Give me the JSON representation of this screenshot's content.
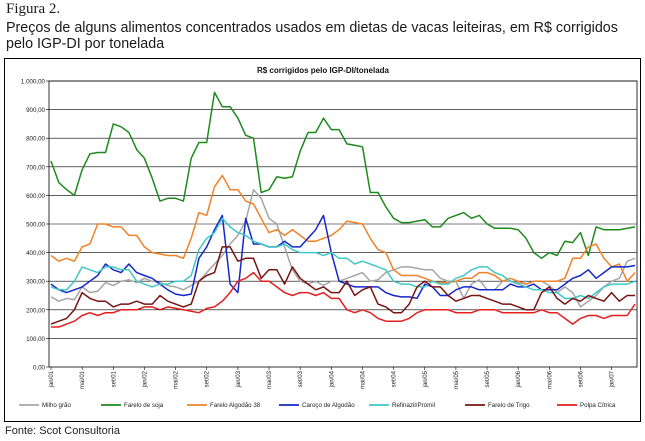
{
  "figure": {
    "label": "Figura 2.",
    "caption": "Preços de alguns alimentos concentrados usados em dietas de vacas leiteiras, em R$ corrigidos pelo IGP-DI por tonelada",
    "source": "Fonte: Scot Consultoria"
  },
  "chart_data": {
    "type": "line",
    "title": "R$ corrigidos pelo IGP-DI/tonelada",
    "xlabel": "",
    "ylabel": "",
    "ylim": [
      0,
      1000
    ],
    "yticks": [
      "0,00",
      "100,00",
      "200,00",
      "300,00",
      "400,00",
      "500,00",
      "600,00",
      "700,00",
      "800,00",
      "900,00",
      "1.000,00"
    ],
    "x_tick_labels": [
      "jan/01",
      "mai/01",
      "set/01",
      "jan/02",
      "mai/02",
      "set/02",
      "jan/03",
      "mai/03",
      "set/03",
      "jan/04",
      "mai/04",
      "set/04",
      "jan/05",
      "mai/05",
      "set/05",
      "jan/06",
      "mai/06",
      "set/06",
      "jan/07"
    ],
    "x_start": "jan/01",
    "n_months": 76,
    "grid": "horizontal",
    "legend_position": "bottom",
    "series": [
      {
        "name": "Milho grão",
        "color": "#a6a6a6",
        "values": [
          245,
          230,
          240,
          235,
          280,
          260,
          265,
          295,
          285,
          300,
          305,
          295,
          310,
          300,
          295,
          285,
          280,
          270,
          285,
          300,
          330,
          360,
          390,
          430,
          460,
          510,
          620,
          590,
          520,
          500,
          420,
          340,
          300,
          290,
          300,
          285,
          300,
          300,
          310,
          320,
          330,
          300,
          305,
          330,
          340,
          350,
          350,
          345,
          340,
          340,
          310,
          300,
          300,
          240,
          290,
          305,
          270,
          270,
          300,
          300,
          295,
          290,
          300,
          300,
          285,
          260,
          280,
          260,
          210,
          230,
          250,
          280,
          300,
          310,
          370,
          380
        ]
      },
      {
        "name": "Farelo de soja",
        "color": "#1e8a1e",
        "values": [
          720,
          645,
          620,
          600,
          690,
          745,
          750,
          750,
          850,
          840,
          820,
          760,
          730,
          660,
          580,
          590,
          590,
          580,
          730,
          785,
          785,
          960,
          910,
          910,
          870,
          810,
          800,
          610,
          620,
          665,
          660,
          665,
          755,
          820,
          820,
          870,
          830,
          830,
          780,
          775,
          770,
          610,
          610,
          560,
          520,
          505,
          505,
          510,
          515,
          490,
          490,
          520,
          530,
          540,
          520,
          530,
          500,
          485,
          485,
          485,
          480,
          450,
          400,
          380,
          400,
          390,
          440,
          435,
          470,
          390,
          490,
          480,
          480,
          480,
          485,
          490
        ]
      },
      {
        "name": "Farelo Algodão 38",
        "color": "#f08228",
        "values": [
          390,
          370,
          380,
          370,
          420,
          430,
          500,
          500,
          490,
          490,
          460,
          460,
          420,
          400,
          395,
          390,
          390,
          380,
          450,
          540,
          530,
          630,
          670,
          620,
          620,
          580,
          570,
          520,
          470,
          480,
          460,
          480,
          460,
          440,
          440,
          450,
          460,
          480,
          510,
          505,
          500,
          450,
          410,
          400,
          340,
          320,
          320,
          320,
          310,
          300,
          295,
          295,
          300,
          310,
          310,
          330,
          330,
          320,
          300,
          310,
          300,
          290,
          300,
          300,
          300,
          300,
          310,
          380,
          380,
          420,
          430,
          380,
          350,
          360,
          300,
          330
        ]
      },
      {
        "name": "Caroço de Algodão",
        "color": "#1428c8",
        "values": [
          290,
          270,
          260,
          270,
          280,
          300,
          320,
          360,
          340,
          330,
          360,
          330,
          320,
          310,
          290,
          270,
          255,
          250,
          255,
          380,
          420,
          480,
          530,
          290,
          260,
          520,
          430,
          430,
          420,
          420,
          440,
          420,
          420,
          450,
          480,
          530,
          400,
          300,
          290,
          280,
          280,
          280,
          280,
          260,
          250,
          245,
          245,
          240,
          290,
          280,
          250,
          250,
          270,
          280,
          280,
          270,
          270,
          270,
          270,
          290,
          280,
          280,
          290,
          270,
          270,
          270,
          290,
          310,
          320,
          340,
          310,
          330,
          350,
          350,
          350,
          355
        ]
      },
      {
        "name": "Refinazil/Promil",
        "color": "#40c8c8",
        "values": [
          280,
          270,
          270,
          300,
          350,
          340,
          330,
          350,
          350,
          340,
          340,
          300,
          290,
          280,
          290,
          290,
          300,
          300,
          320,
          410,
          450,
          470,
          520,
          490,
          470,
          460,
          440,
          430,
          420,
          420,
          430,
          410,
          400,
          400,
          400,
          390,
          400,
          380,
          380,
          360,
          370,
          360,
          350,
          340,
          300,
          290,
          290,
          280,
          280,
          300,
          290,
          290,
          310,
          320,
          340,
          350,
          350,
          330,
          320,
          300,
          290,
          280,
          270,
          270,
          260,
          260,
          240,
          240,
          250,
          240,
          260,
          280,
          290,
          290,
          290,
          300
        ]
      },
      {
        "name": "Farelo de Trigo",
        "color": "#781414",
        "values": [
          150,
          160,
          170,
          200,
          260,
          240,
          230,
          230,
          210,
          220,
          220,
          230,
          220,
          220,
          250,
          230,
          220,
          210,
          220,
          300,
          320,
          330,
          420,
          420,
          370,
          380,
          380,
          310,
          340,
          340,
          290,
          350,
          310,
          290,
          270,
          280,
          260,
          260,
          300,
          250,
          270,
          280,
          220,
          210,
          190,
          190,
          220,
          280,
          300,
          280,
          280,
          250,
          230,
          240,
          250,
          250,
          240,
          230,
          220,
          220,
          210,
          200,
          200,
          260,
          280,
          240,
          220,
          240,
          230,
          250,
          240,
          230,
          260,
          230,
          250,
          250
        ]
      },
      {
        "name": "Polpa Cítrica",
        "color": "#e61e1e",
        "values": [
          140,
          140,
          150,
          160,
          180,
          190,
          180,
          190,
          190,
          200,
          200,
          200,
          210,
          210,
          200,
          210,
          205,
          200,
          195,
          190,
          205,
          210,
          230,
          260,
          300,
          310,
          330,
          300,
          300,
          280,
          260,
          250,
          260,
          260,
          250,
          260,
          240,
          240,
          200,
          190,
          200,
          190,
          170,
          160,
          160,
          160,
          170,
          190,
          200,
          200,
          200,
          200,
          190,
          190,
          190,
          200,
          200,
          200,
          190,
          190,
          190,
          190,
          190,
          200,
          190,
          190,
          170,
          150,
          170,
          180,
          180,
          170,
          180,
          180,
          180,
          220
        ]
      }
    ]
  }
}
